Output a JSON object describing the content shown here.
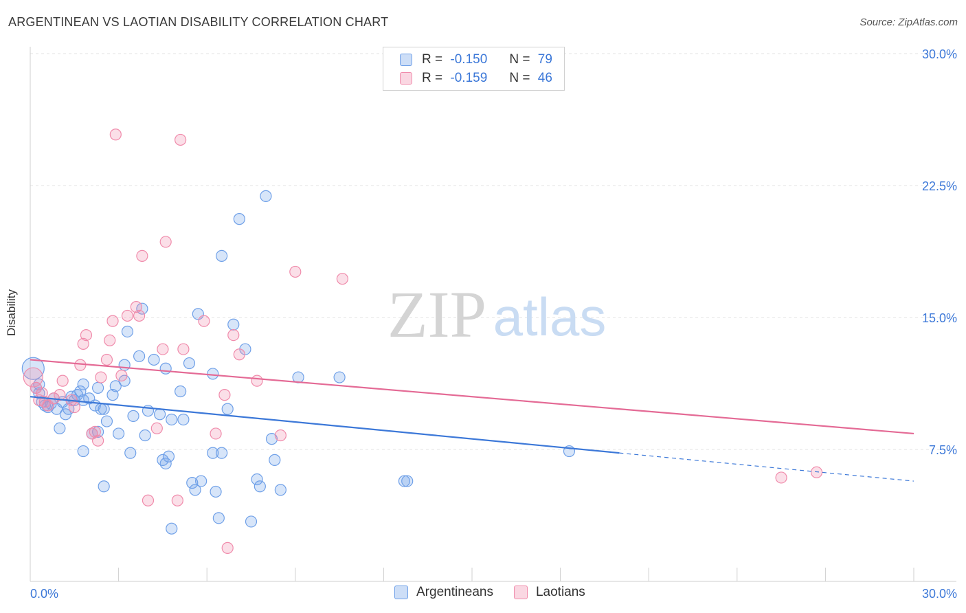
{
  "header": {
    "title": "ARGENTINEAN VS LAOTIAN DISABILITY CORRELATION CHART",
    "source": "Source: ZipAtlas.com"
  },
  "watermark": {
    "zip": "ZIP",
    "atlas": "atlas"
  },
  "legend": {
    "rows": [
      {
        "r_label": "R =",
        "r_value": "-0.150",
        "n_label": "N =",
        "n_value": "79",
        "color": "#6fa0e8"
      },
      {
        "r_label": "R =",
        "r_value": "-0.159",
        "n_label": "N =",
        "n_value": "46",
        "color": "#f08bab"
      }
    ]
  },
  "bottom_legend": {
    "series_a": "Argentineans",
    "series_b": "Laotians"
  },
  "colors": {
    "blue": "#3c78d8",
    "blue_fill": "rgba(111,160,232,0.28)",
    "pink": "#e46a95",
    "pink_fill": "rgba(240,139,171,0.28)",
    "grid": "#e3e3e3"
  },
  "chart_data": {
    "type": "scatter",
    "title": "ARGENTINEAN VS LAOTIAN DISABILITY CORRELATION CHART",
    "xlabel": "",
    "ylabel": "Disability",
    "xlim": [
      0,
      30
    ],
    "ylim": [
      0,
      30
    ],
    "x_tick_labels": [
      "0.0%",
      "30.0%"
    ],
    "y_ticks": [
      7.5,
      15.0,
      22.5,
      30.0
    ],
    "y_tick_labels": [
      "7.5%",
      "15.0%",
      "22.5%",
      "30.0%"
    ],
    "grid": true,
    "legend_position": "top-center",
    "series": [
      {
        "name": "Argentineans",
        "r": -0.15,
        "n": 79,
        "trend": {
          "x0": 0,
          "y0": 10.5,
          "x1": 20.0,
          "y1": 7.3,
          "dash_to_x": 30,
          "dash_to_y": 5.7
        },
        "points": [
          [
            0.1,
            12.1
          ],
          [
            0.2,
            11.0
          ],
          [
            0.3,
            10.7
          ],
          [
            0.4,
            10.2
          ],
          [
            0.5,
            10.0
          ],
          [
            0.6,
            9.9
          ],
          [
            0.7,
            10.1
          ],
          [
            0.8,
            10.4
          ],
          [
            0.9,
            9.8
          ],
          [
            1.0,
            8.7
          ],
          [
            1.1,
            10.2
          ],
          [
            1.2,
            9.5
          ],
          [
            1.3,
            9.8
          ],
          [
            1.4,
            10.5
          ],
          [
            1.5,
            10.3
          ],
          [
            1.6,
            10.6
          ],
          [
            1.7,
            10.8
          ],
          [
            1.8,
            10.3
          ],
          [
            1.8,
            11.2
          ],
          [
            1.8,
            7.4
          ],
          [
            2.0,
            10.4
          ],
          [
            2.1,
            8.4
          ],
          [
            2.2,
            10.0
          ],
          [
            2.3,
            8.5
          ],
          [
            2.3,
            11.0
          ],
          [
            2.4,
            9.8
          ],
          [
            2.5,
            9.8
          ],
          [
            2.5,
            5.4
          ],
          [
            2.6,
            9.1
          ],
          [
            2.8,
            10.6
          ],
          [
            2.9,
            11.1
          ],
          [
            3.0,
            8.4
          ],
          [
            3.2,
            11.4
          ],
          [
            3.2,
            12.3
          ],
          [
            3.3,
            14.2
          ],
          [
            3.4,
            7.3
          ],
          [
            3.5,
            9.4
          ],
          [
            3.7,
            12.8
          ],
          [
            3.8,
            15.5
          ],
          [
            3.9,
            8.3
          ],
          [
            4.0,
            9.7
          ],
          [
            4.2,
            12.6
          ],
          [
            4.4,
            9.5
          ],
          [
            4.5,
            6.9
          ],
          [
            4.6,
            6.7
          ],
          [
            4.6,
            12.1
          ],
          [
            4.7,
            7.1
          ],
          [
            4.8,
            9.2
          ],
          [
            4.8,
            3.0
          ],
          [
            5.1,
            10.8
          ],
          [
            5.2,
            9.2
          ],
          [
            5.4,
            12.4
          ],
          [
            5.5,
            5.6
          ],
          [
            5.6,
            5.2
          ],
          [
            5.7,
            15.2
          ],
          [
            5.8,
            5.7
          ],
          [
            6.2,
            7.3
          ],
          [
            6.2,
            11.8
          ],
          [
            6.3,
            5.1
          ],
          [
            6.4,
            3.6
          ],
          [
            6.5,
            7.3
          ],
          [
            6.5,
            18.5
          ],
          [
            6.7,
            9.8
          ],
          [
            6.9,
            14.6
          ],
          [
            7.1,
            20.6
          ],
          [
            7.3,
            13.2
          ],
          [
            7.5,
            3.4
          ],
          [
            7.7,
            5.8
          ],
          [
            7.8,
            5.4
          ],
          [
            8.0,
            21.9
          ],
          [
            8.2,
            8.1
          ],
          [
            8.3,
            6.9
          ],
          [
            8.5,
            5.2
          ],
          [
            9.1,
            11.6
          ],
          [
            10.5,
            11.6
          ],
          [
            12.7,
            5.7
          ],
          [
            12.8,
            5.7
          ],
          [
            18.3,
            7.4
          ],
          [
            0.3,
            11.2
          ]
        ]
      },
      {
        "name": "Laotians",
        "r": -0.159,
        "n": 46,
        "trend": {
          "x0": 0,
          "y0": 12.6,
          "x1": 30,
          "y1": 8.4
        },
        "points": [
          [
            0.1,
            11.6
          ],
          [
            0.2,
            11.0
          ],
          [
            0.3,
            10.3
          ],
          [
            0.4,
            10.7
          ],
          [
            0.6,
            10.0
          ],
          [
            0.8,
            10.4
          ],
          [
            1.0,
            10.6
          ],
          [
            1.1,
            11.4
          ],
          [
            1.4,
            10.3
          ],
          [
            1.5,
            9.9
          ],
          [
            1.7,
            12.3
          ],
          [
            1.8,
            13.5
          ],
          [
            1.9,
            14.0
          ],
          [
            2.1,
            8.4
          ],
          [
            2.2,
            8.5
          ],
          [
            2.3,
            8.0
          ],
          [
            2.4,
            11.6
          ],
          [
            2.6,
            12.6
          ],
          [
            2.7,
            13.7
          ],
          [
            2.8,
            14.8
          ],
          [
            2.9,
            25.4
          ],
          [
            3.1,
            11.7
          ],
          [
            3.3,
            15.1
          ],
          [
            3.6,
            15.6
          ],
          [
            3.7,
            15.1
          ],
          [
            3.8,
            18.5
          ],
          [
            4.0,
            4.6
          ],
          [
            4.3,
            8.7
          ],
          [
            4.5,
            13.2
          ],
          [
            4.6,
            19.3
          ],
          [
            5.0,
            4.6
          ],
          [
            5.1,
            25.1
          ],
          [
            5.2,
            13.2
          ],
          [
            5.9,
            14.8
          ],
          [
            6.3,
            8.4
          ],
          [
            6.6,
            10.6
          ],
          [
            6.7,
            1.9
          ],
          [
            6.9,
            14.0
          ],
          [
            7.1,
            12.9
          ],
          [
            7.7,
            11.4
          ],
          [
            8.5,
            8.3
          ],
          [
            9.0,
            17.6
          ],
          [
            10.6,
            17.2
          ],
          [
            25.5,
            5.9
          ],
          [
            26.7,
            6.2
          ],
          [
            0.5,
            10.2
          ]
        ]
      }
    ]
  }
}
